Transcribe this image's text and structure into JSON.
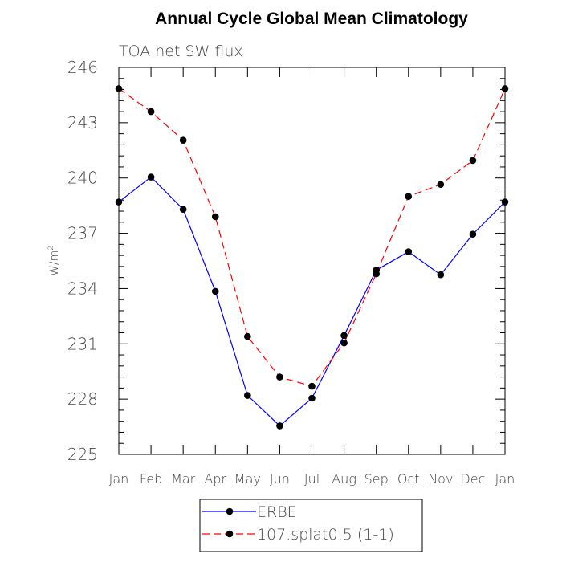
{
  "chart_data": {
    "type": "line",
    "title": "Annual Cycle Global Mean Climatology",
    "subtitle": "TOA net SW flux",
    "ylabel": "W/m",
    "ylabel_superscript": "2",
    "xlabel": "",
    "categories": [
      "Jan",
      "Feb",
      "Mar",
      "Apr",
      "May",
      "Jun",
      "Jul",
      "Aug",
      "Sep",
      "Oct",
      "Nov",
      "Dec",
      "Jan"
    ],
    "ylim": [
      225,
      246
    ],
    "yticks": [
      225,
      228,
      231,
      234,
      237,
      240,
      243,
      246
    ],
    "series": [
      {
        "name": "ERBE",
        "color": "#0000ff",
        "dash": "solid",
        "values": [
          238.7,
          240.05,
          238.3,
          233.85,
          228.2,
          226.55,
          228.05,
          231.45,
          235.0,
          236.0,
          234.75,
          236.95,
          238.7
        ]
      },
      {
        "name": "107.splat0.5 (1-1)",
        "color": "#ff0000",
        "dash": "dashed",
        "values": [
          244.85,
          243.6,
          242.05,
          237.9,
          231.4,
          229.2,
          228.7,
          231.05,
          234.8,
          239.0,
          239.65,
          240.95,
          244.85
        ]
      }
    ],
    "legend": "bottom",
    "grid": false
  }
}
